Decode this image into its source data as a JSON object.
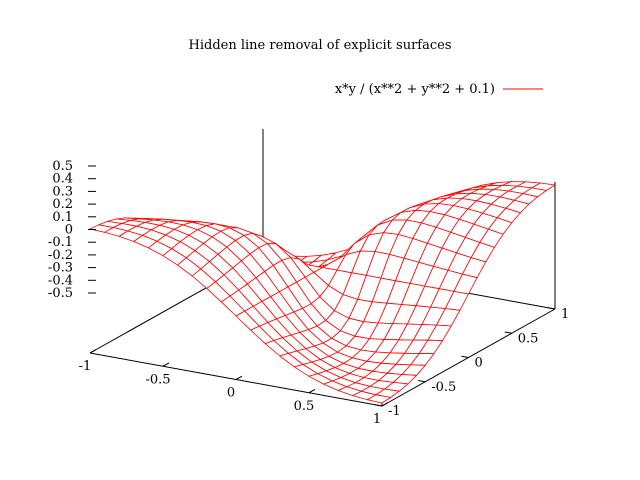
{
  "chart_data": {
    "type": "surface",
    "title": "Hidden line removal of explicit surfaces",
    "function": "x*y / (x**2 + y**2 + 0.1)",
    "legend": {
      "label": "x*y / (x**2 + y**2 + 0.1)",
      "color": "#ff0000",
      "placement": "top-right"
    },
    "hidden3d": true,
    "x_range": [
      -1,
      1
    ],
    "y_range": [
      -1,
      1
    ],
    "z_range": [
      -0.5,
      0.5
    ],
    "samples": 20,
    "x_ticks": [
      "-1",
      "-0.5",
      "0",
      "0.5",
      "1"
    ],
    "y_ticks": [
      "-1",
      "-0.5",
      "0",
      "0.5",
      "1"
    ],
    "z_ticks": [
      "0.5",
      "0.4",
      "0.3",
      "0.2",
      "0.1",
      "0",
      "-0.1",
      "-0.2",
      "-0.3",
      "-0.4",
      "-0.5"
    ],
    "mesh_color": "#ff0000",
    "axis_color": "#000000"
  }
}
